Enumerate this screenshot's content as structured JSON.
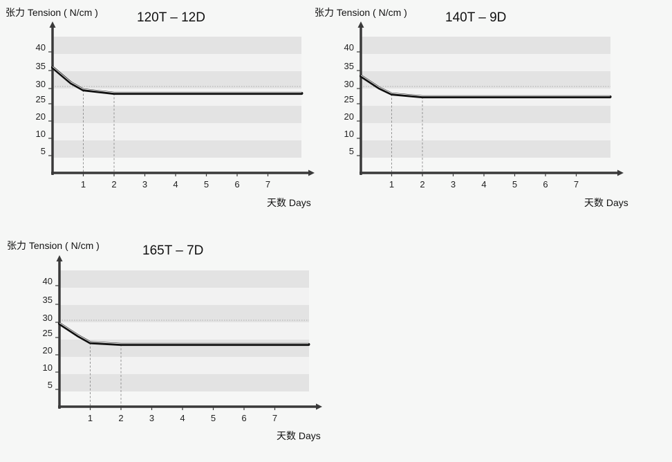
{
  "chart_data": [
    {
      "type": "line",
      "title": "120T – 12D",
      "ylabel": "张力 Tension ( N/cm )",
      "xlabel": "天数 Days",
      "yticks": [
        5,
        10,
        20,
        25,
        30,
        35,
        40
      ],
      "xticks": [
        1,
        2,
        3,
        4,
        5,
        6,
        7
      ],
      "reference_y": 30,
      "drop_lines_x": [
        1,
        2
      ],
      "series": [
        {
          "x": [
            0,
            0.6,
            1,
            2,
            8.1
          ],
          "y": [
            35.5,
            31,
            29,
            28,
            28
          ]
        }
      ]
    },
    {
      "type": "line",
      "title": "140T – 9D",
      "ylabel": "张力 Tension ( N/cm )",
      "xlabel": "天数 Days",
      "yticks": [
        5,
        10,
        20,
        25,
        30,
        35,
        40
      ],
      "xticks": [
        1,
        2,
        3,
        4,
        5,
        6,
        7
      ],
      "reference_y": 30,
      "drop_lines_x": [
        1,
        2
      ],
      "series": [
        {
          "x": [
            0,
            0.6,
            1,
            2,
            8.1
          ],
          "y": [
            33,
            29.5,
            27.8,
            27,
            27
          ]
        }
      ]
    },
    {
      "type": "line",
      "title": "165T – 7D",
      "ylabel": "张力 Tension ( N/cm )",
      "xlabel": "天数 Days",
      "yticks": [
        5,
        10,
        20,
        25,
        30,
        35,
        40
      ],
      "xticks": [
        1,
        2,
        3,
        4,
        5,
        6,
        7
      ],
      "reference_y": 30,
      "drop_lines_x": [
        1,
        2
      ],
      "series": [
        {
          "x": [
            0,
            0.6,
            1,
            2,
            8.1
          ],
          "y": [
            29,
            25.5,
            23.5,
            23,
            23
          ]
        }
      ]
    }
  ]
}
